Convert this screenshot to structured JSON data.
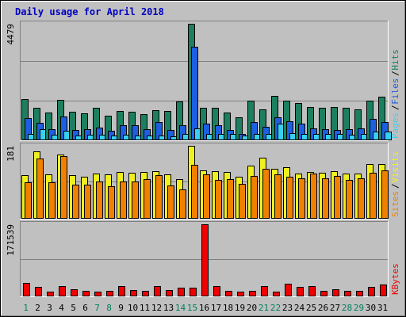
{
  "chart_data": {
    "type": "bar",
    "title": "Daily usage for April 2018",
    "categories": [
      "1",
      "2",
      "3",
      "4",
      "5",
      "6",
      "7",
      "8",
      "9",
      "10",
      "11",
      "12",
      "13",
      "14",
      "15",
      "16",
      "17",
      "18",
      "19",
      "20",
      "21",
      "22",
      "23",
      "24",
      "25",
      "26",
      "27",
      "28",
      "29",
      "30",
      "31"
    ],
    "weekend_days": [
      "1",
      "7",
      "8",
      "14",
      "15",
      "21",
      "22",
      "28",
      "29"
    ],
    "panels": [
      {
        "id": "hits-files-pages",
        "max_label": "4479",
        "ylim": [
          0,
          4479
        ],
        "legend": [
          "Pages",
          "Files",
          "Hits"
        ],
        "series": [
          {
            "name": "Hits",
            "color": "#1c8060",
            "values": [
              1560,
              1240,
              1040,
              1520,
              1080,
              1020,
              1220,
              910,
              1110,
              1080,
              980,
              1150,
              1100,
              1470,
              4479,
              1220,
              1220,
              1040,
              850,
              1510,
              1160,
              1700,
              1510,
              1400,
              1250,
              1240,
              1260,
              1240,
              1170,
              1510,
              1660
            ]
          },
          {
            "name": "Files",
            "color": "#1c5fe0",
            "values": [
              820,
              630,
              400,
              880,
              380,
              410,
              460,
              330,
              540,
              540,
              390,
              660,
              380,
              550,
              3580,
              620,
              560,
              380,
              230,
              690,
              480,
              850,
              720,
              620,
              420,
              400,
              370,
              400,
              430,
              790,
              690
            ]
          },
          {
            "name": "Pages",
            "color": "#38d0f0",
            "values": [
              220,
              400,
              180,
              330,
              150,
              180,
              180,
              150,
              180,
              150,
              150,
              160,
              130,
              200,
              420,
              200,
              200,
              200,
              150,
              200,
              200,
              600,
              260,
              200,
              200,
              200,
              200,
              180,
              200,
              300,
              300
            ]
          }
        ]
      },
      {
        "id": "sites-visits",
        "max_label": "181",
        "ylim": [
          0,
          181
        ],
        "legend": [
          "Sites",
          "Visits"
        ],
        "series": [
          {
            "name": "Visits",
            "color": "#f0f020",
            "values": [
              108,
              168,
              110,
              160,
              108,
              104,
              112,
              110,
              116,
              114,
              116,
              118,
              110,
              98,
              181,
              120,
              118,
              116,
              104,
              132,
              152,
              124,
              128,
              112,
              116,
              114,
              118,
              112,
              112,
              136,
              136
            ]
          },
          {
            "name": "Sites",
            "color": "#f08000",
            "values": [
              90,
              150,
              90,
              156,
              84,
              84,
              92,
              80,
              92,
              92,
              98,
              108,
              82,
              72,
              134,
              110,
              96,
              98,
              86,
              106,
              124,
              110,
              104,
              100,
              112,
              100,
              106,
              96,
              100,
              114,
              120
            ]
          }
        ]
      },
      {
        "id": "kbytes",
        "max_label": "171539",
        "ylim": [
          0,
          171539
        ],
        "legend": [
          "KBytes"
        ],
        "series": [
          {
            "name": "KBytes",
            "color": "#f00000",
            "values": [
              31000,
              21000,
              10000,
              23000,
              15000,
              12000,
              9000,
              11000,
              22000,
              13000,
              12000,
              22000,
              13000,
              20000,
              19000,
              171539,
              23000,
              12000,
              10000,
              11000,
              23000,
              10000,
              28000,
              21000,
              23000,
              11000,
              16000,
              11000,
              12000,
              21000,
              26000
            ]
          }
        ]
      }
    ]
  }
}
